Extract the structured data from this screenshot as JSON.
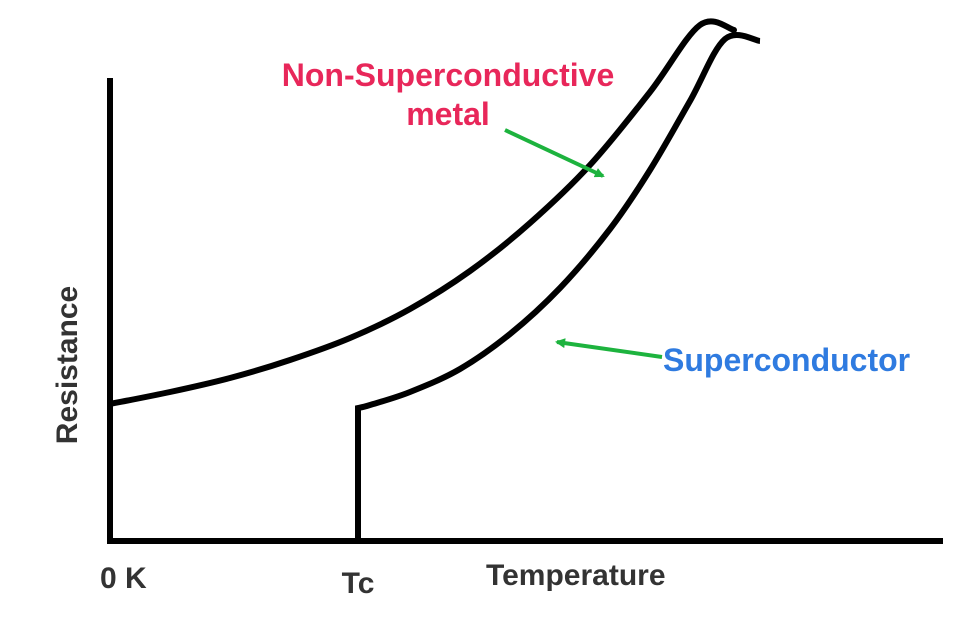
{
  "chart_data": {
    "type": "line",
    "title": "",
    "xlabel": "Temperature",
    "ylabel": "Resistance",
    "x_ticks": [
      {
        "label": "0 K",
        "value": 0
      },
      {
        "label": "Tc",
        "value": 248
      }
    ],
    "xlim": [
      0,
      830
    ],
    "ylim": [
      0,
      520
    ],
    "grid": false,
    "series": [
      {
        "name_lines": [
          "Non-Superconductive",
          "metal"
        ],
        "color": "#000000",
        "label_color": "#e8275a",
        "points": [
          [
            0,
            137
          ],
          [
            60,
            149
          ],
          [
            120,
            163
          ],
          [
            180,
            181
          ],
          [
            240,
            203
          ],
          [
            300,
            232
          ],
          [
            360,
            270
          ],
          [
            420,
            318
          ],
          [
            480,
            376
          ],
          [
            540,
            449
          ],
          [
            590,
            516
          ],
          [
            624,
            511
          ]
        ]
      },
      {
        "name_lines": [
          "Superconductor"
        ],
        "color": "#000000",
        "label_color": "#2f7be0",
        "points": [
          [
            248,
            0
          ],
          [
            248,
            133
          ],
          [
            260,
            136
          ],
          [
            300,
            149
          ],
          [
            350,
            172
          ],
          [
            400,
            207
          ],
          [
            450,
            253
          ],
          [
            500,
            312
          ],
          [
            540,
            371
          ],
          [
            580,
            440
          ],
          [
            615,
            502
          ],
          [
            650,
            500
          ]
        ]
      }
    ],
    "arrow_color": "#1db33e"
  }
}
